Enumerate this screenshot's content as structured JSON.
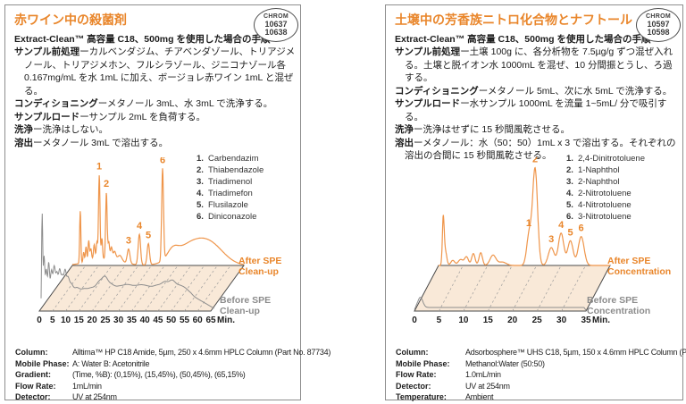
{
  "colors": {
    "accent": "#e9862b",
    "trace_after": "#ef954a",
    "trace_before": "#8d8d8d",
    "plane_fill": "#f9e9d8",
    "label_before": "#8c8c8c",
    "plane_stroke": "#4a4a4a",
    "grid_dash": "#9b9b9b",
    "text": "#1c1c1c",
    "border": "#8e8e8e"
  },
  "panels": [
    {
      "title": "赤ワイン中の殺菌剤",
      "badge": {
        "brand": "CHROM",
        "numbers": [
          "10637",
          "10638"
        ]
      },
      "subtitle": "Extract-Clean™ 高容量 C18、500mg を使用した場合の手順",
      "steps": [
        {
          "label": "サンプル前処理",
          "text": "ーカルベンダジム、チアベンダゾール、トリアジメノール、トリアジメホン、フルシラゾール、ジニコナゾール各 0.167mg/mL を水 1mL に加え、ボージョレ赤ワイン 1mL と混ぜる。"
        },
        {
          "label": "コンディショニング",
          "text": "ーメタノール 3mL、水 3mL で洗浄する。"
        },
        {
          "label": "サンプルロード",
          "text": "ーサンプル 2mL を負荷する。"
        },
        {
          "label": "洗浄",
          "text": "ー洗浄はしない。"
        },
        {
          "label": "溶出",
          "text": "ーメタノール 3mL で溶出する。"
        }
      ],
      "legend": [
        {
          "num": "1.",
          "name": "Carbendazim"
        },
        {
          "num": "2.",
          "name": "Thiabendazole"
        },
        {
          "num": "3.",
          "name": "Triadimenol"
        },
        {
          "num": "4.",
          "name": "Triadimefon"
        },
        {
          "num": "5.",
          "name": "Flusilazole"
        },
        {
          "num": "6.",
          "name": "Diniconazole"
        }
      ],
      "table": [
        {
          "key": "Column:",
          "value": "Alltima™ HP C18 Amide, 5µm, 250 x 4.6mm HPLC Column (Part No. 87734)"
        },
        {
          "key": "Mobile Phase:",
          "value": "A: Water  B: Acetonitrile"
        },
        {
          "key": "Gradient:",
          "value": "(Time, %B):  (0,15%), (15,45%), (50,45%), (65,15%)"
        },
        {
          "key": "Flow Rate:",
          "value": "1mL/min"
        },
        {
          "key": "Detector:",
          "value": "UV at 254nm"
        }
      ]
    },
    {
      "title": "土壌中の芳香族ニトロ化合物とナフトール",
      "badge": {
        "brand": "CHROM",
        "numbers": [
          "10597",
          "10598"
        ]
      },
      "subtitle": "Extract-Clean™ 高容量 C18、500mg を使用した場合の手順",
      "steps": [
        {
          "label": "サンプル前処理",
          "text": "ー土壌 100g に、各分析物を 7.5µg/g ずつ混ぜ入れる。土壌と脱イオン水 1000mL を混ぜ、10 分間振とうし、ろ過する。"
        },
        {
          "label": "コンディショニング",
          "text": "ーメタノール 5mL、次に水 5mL で洗浄する。"
        },
        {
          "label": "サンプルロード",
          "text": "ー水サンプル 1000mL を流量 1~5mL/ 分で吸引する。"
        },
        {
          "label": "洗浄",
          "text": "ー洗浄はせずに 15 秒間風乾させる。"
        },
        {
          "label": "溶出",
          "text": "ーメタノール：水（50：50）1mL x 3 で溶出する。それぞれの溶出の合間に 15 秒間風乾させる。"
        }
      ],
      "legend": [
        {
          "num": "1.",
          "name": "2,4-Dinitrotoluene"
        },
        {
          "num": "2.",
          "name": "1-Naphthol"
        },
        {
          "num": "3.",
          "name": "2-Naphthol"
        },
        {
          "num": "4.",
          "name": "2-Nitrotoluene"
        },
        {
          "num": "5.",
          "name": "4-Nitrotoluene"
        },
        {
          "num": "6.",
          "name": "3-Nitrotoluene"
        }
      ],
      "table": [
        {
          "key": "Column:",
          "value": "Adsorbosphere™ UHS C18, 5µm, 150 x 4.6mm HPLC Column (Part No. 288118)"
        },
        {
          "key": "Mobile Phase:",
          "value": "Methanol:Water (50:50)"
        },
        {
          "key": "Flow Rate:",
          "value": "1.0mL/min"
        },
        {
          "key": "Detector:",
          "value": "UV at 254nm"
        },
        {
          "key": "Temperature:",
          "value": "Ambient"
        }
      ]
    }
  ],
  "chart_data": [
    {
      "type": "line",
      "title": "赤ワイン中の殺菌剤",
      "xlabel": "Min.",
      "xlim": [
        0,
        65
      ],
      "x_ticks": [
        0,
        5,
        10,
        15,
        20,
        25,
        30,
        35,
        40,
        45,
        50,
        55,
        60,
        65
      ],
      "grid": "dashed-perspective",
      "legend_position": "upper-right",
      "peaks_format": [
        "retention_min",
        "relative_height",
        "peak_width_min"
      ],
      "series": [
        {
          "name": "After SPE Clean-up",
          "label_lines": [
            "After SPE",
            "Clean-up"
          ],
          "role": "after",
          "range": [
            0,
            65
          ],
          "peaks": [
            [
              3.0,
              62,
              0.22
            ],
            [
              4.3,
              12,
              0.25
            ],
            [
              5.2,
              18,
              0.25
            ],
            [
              6.2,
              24,
              0.25
            ],
            [
              7.0,
              14,
              0.3
            ],
            [
              8.3,
              18,
              0.3
            ],
            [
              9.3,
              20,
              0.25
            ],
            [
              10.2,
              99,
              0.28
            ],
            [
              11.2,
              24,
              0.25
            ],
            [
              12.9,
              78,
              0.28
            ],
            [
              13.8,
              20,
              0.3
            ],
            [
              14.8,
              14,
              0.35
            ],
            [
              16,
              10,
              0.5
            ],
            [
              18,
              7,
              0.8
            ],
            [
              12,
              8,
              6
            ],
            [
              21.3,
              17,
              0.5
            ],
            [
              25.4,
              36,
              0.45
            ],
            [
              28.8,
              25,
              0.45
            ],
            [
              34.2,
              108,
              0.35
            ],
            [
              38,
              10,
              2
            ],
            [
              45,
              24,
              6
            ],
            [
              53,
              18,
              5
            ]
          ]
        },
        {
          "name": "Before SPE Clean-up",
          "label_lines": [
            "Before SPE",
            "Clean-up"
          ],
          "role": "before",
          "range": [
            0,
            63.5
          ],
          "baseline": [
            [
              0,
              170
            ],
            [
              0.3,
              154
            ],
            [
              55,
              154
            ],
            [
              59,
              161
            ],
            [
              63.5,
              169
            ]
          ],
          "peaks": [
            [
              0.4,
              95,
              0.2
            ],
            [
              1.1,
              45,
              0.25
            ],
            [
              1.9,
              30,
              0.3
            ],
            [
              2.8,
              38,
              0.3
            ],
            [
              3.8,
              28,
              0.35
            ],
            [
              4.8,
              33,
              0.4
            ],
            [
              5.8,
              25,
              0.4
            ],
            [
              6.8,
              28,
              0.4
            ],
            [
              7.8,
              22,
              0.45
            ],
            [
              8.8,
              26,
              0.4
            ],
            [
              9.8,
              18,
              0.5
            ],
            [
              11,
              12,
              0.7
            ],
            [
              13,
              8,
              1
            ],
            [
              15.5,
              6,
              1.2
            ],
            [
              18.5,
              8,
              1.5
            ],
            [
              21.5,
              14,
              1.2
            ],
            [
              23.5,
              16,
              1
            ],
            [
              25.5,
              10,
              1.2
            ],
            [
              28,
              7,
              1.5
            ],
            [
              31,
              9,
              1.8
            ],
            [
              34,
              7,
              2
            ],
            [
              37,
              8,
              1.8
            ],
            [
              40,
              7,
              1.8
            ],
            [
              43,
              9,
              1.5
            ],
            [
              45.5,
              12,
              1.2
            ],
            [
              48,
              14,
              1.2
            ],
            [
              50.5,
              9,
              1.5
            ],
            [
              53,
              6,
              1.5
            ]
          ]
        }
      ],
      "annotations": [
        {
          "label": "1",
          "t": 10.2,
          "name": "Carbendazim"
        },
        {
          "label": "2",
          "t": 12.9,
          "name": "Thiabendazole"
        },
        {
          "label": "3",
          "t": 21.3,
          "name": "Triadimenol"
        },
        {
          "label": "4",
          "t": 25.4,
          "name": "Triadimefon"
        },
        {
          "label": "5",
          "t": 28.8,
          "name": "Flusilazole"
        },
        {
          "label": "6",
          "t": 34.2,
          "name": "Diniconazole"
        }
      ]
    },
    {
      "type": "line",
      "title": "土壌中の芳香族ニトロ化合物とナフトール",
      "xlabel": "Min.",
      "xlim": [
        0,
        35
      ],
      "x_ticks": [
        0,
        5,
        10,
        15,
        20,
        25,
        30,
        35
      ],
      "grid": "dashed-perspective",
      "legend_position": "upper-right",
      "peaks_format": [
        "retention_min",
        "relative_height",
        "peak_width_min"
      ],
      "series": [
        {
          "name": "After SPE Concentration",
          "label_lines": [
            "After SPE",
            "Concentration"
          ],
          "role": "after",
          "range": [
            0,
            35
          ],
          "peaks": [
            [
              0.95,
              52,
              0.18
            ],
            [
              1.35,
              18,
              0.3
            ],
            [
              2.9,
              6,
              0.4
            ],
            [
              4.5,
              7,
              0.5
            ],
            [
              5.7,
              10,
              0.4
            ],
            [
              7.1,
              14,
              0.35
            ],
            [
              8.6,
              15,
              0.35
            ],
            [
              11.1,
              12,
              0.6
            ],
            [
              13,
              4,
              0.8
            ],
            [
              18.5,
              37,
              0.5
            ],
            [
              19.7,
              113,
              0.5
            ],
            [
              23.0,
              21,
              0.6
            ],
            [
              25.0,
              38,
              0.55
            ],
            [
              26.9,
              29,
              0.55
            ],
            [
              29.1,
              34,
              0.6
            ]
          ]
        },
        {
          "name": "Before SPE Concentration",
          "label_lines": [
            "Before SPE",
            "Concentration"
          ],
          "role": "before",
          "range": [
            0,
            35
          ],
          "baseline": [
            [
              0,
              171
            ],
            [
              0.4,
              168
            ],
            [
              34.6,
              168
            ],
            [
              35,
              171
            ]
          ],
          "peaks": [
            [
              1.2,
              12,
              0.5
            ]
          ]
        }
      ],
      "annotations": [
        {
          "label": "1",
          "t": 18.4,
          "name": "2,4-Dinitrotoluene"
        },
        {
          "label": "2",
          "t": 19.7,
          "name": "1-Naphthol"
        },
        {
          "label": "3",
          "t": 23.0,
          "name": "2-Naphthol"
        },
        {
          "label": "4",
          "t": 25.0,
          "name": "2-Nitrotoluene"
        },
        {
          "label": "5",
          "t": 26.9,
          "name": "4-Nitrotoluene"
        },
        {
          "label": "6",
          "t": 29.1,
          "name": "3-Nitrotoluene"
        }
      ]
    }
  ]
}
